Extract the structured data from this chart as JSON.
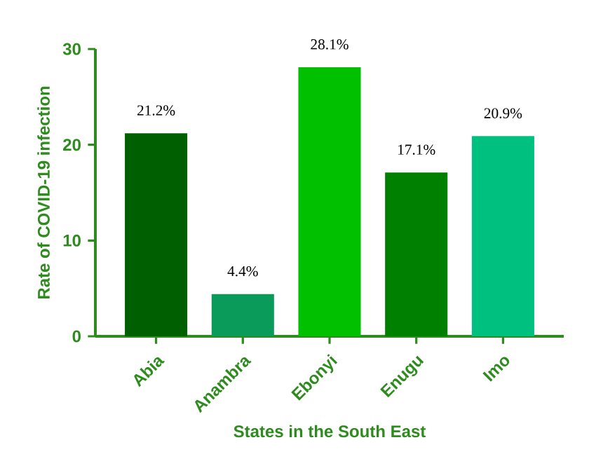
{
  "chart_data": {
    "type": "bar",
    "xlabel": "States in the South East",
    "ylabel": "Rate of COVID-19 infection",
    "categories": [
      "Abia",
      "Anambra",
      "Ebonyi",
      "Enugu",
      "Imo"
    ],
    "values": [
      21.2,
      4.4,
      28.1,
      17.1,
      20.9
    ],
    "colors": [
      "#005f00",
      "#0a9a5a",
      "#00c000",
      "#008000",
      "#00c080"
    ],
    "value_labels": [
      "21.2%",
      "4.4%",
      "28.1%",
      "17.1%",
      "20.9%"
    ],
    "ylim": [
      0,
      30
    ],
    "yticks": [
      0,
      10,
      20,
      30
    ]
  }
}
